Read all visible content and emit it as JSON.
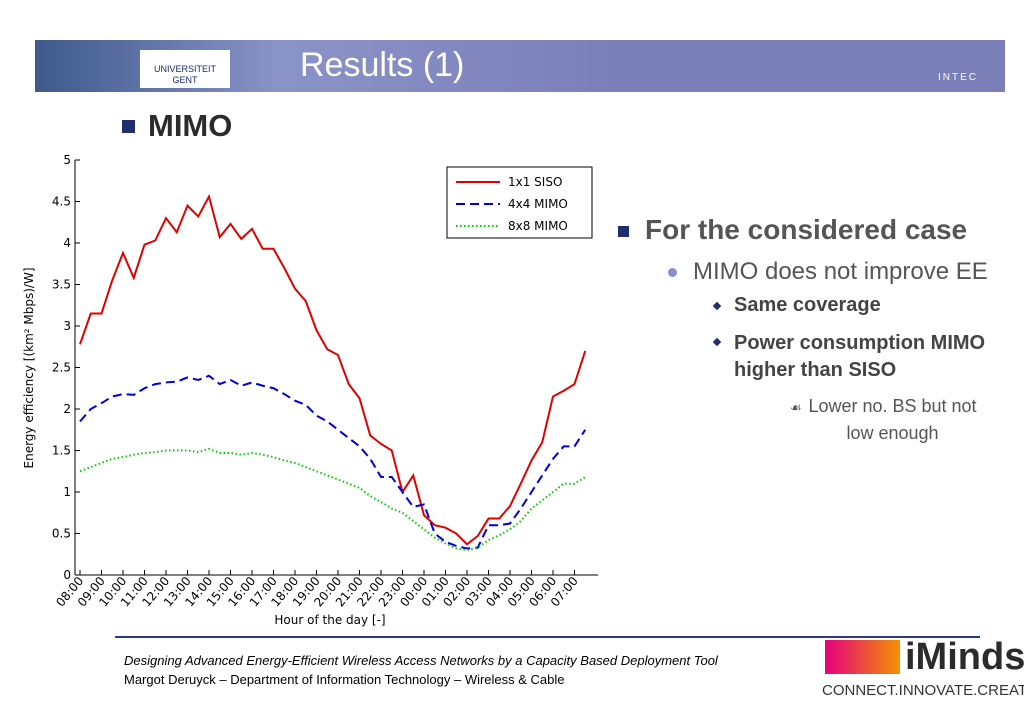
{
  "header": {
    "title": "Results (1)",
    "logo_left": [
      "UNIVERSITEIT",
      "GENT"
    ],
    "logo_right": "INTEC"
  },
  "section": "MIMO",
  "chart_data": {
    "type": "line",
    "x_label": "Hour of the day [-]",
    "y_label": "Energy efficiency [(km² Mbps)/W]",
    "categories": [
      "08:00",
      null,
      "09:00",
      null,
      "10:00",
      null,
      "11:00",
      null,
      "12:00",
      null,
      "13:00",
      null,
      "14:00",
      null,
      "15:00",
      null,
      "16:00",
      null,
      "17:00",
      null,
      "18:00",
      null,
      "19:00",
      null,
      "20:00",
      null,
      "21:00",
      null,
      "22:00",
      null,
      "23:00",
      null,
      "00:00",
      null,
      "01:00",
      null,
      "02:00",
      null,
      "03:00",
      null,
      "04:00",
      null,
      "05:00",
      null,
      "06:00",
      null,
      "07:00",
      null
    ],
    "ylim": [
      0,
      5
    ],
    "yticks": [
      0,
      0.5,
      1,
      1.5,
      2,
      2.5,
      3,
      3.5,
      4,
      4.5,
      5
    ],
    "legend": "upper right",
    "series": [
      {
        "name": "1x1 SISO",
        "color": "#e00000",
        "style": "solid",
        "values": [
          2.78,
          3.15,
          3.15,
          3.55,
          3.88,
          3.58,
          3.98,
          4.03,
          4.3,
          4.13,
          4.45,
          4.32,
          4.56,
          4.07,
          4.23,
          4.05,
          4.17,
          3.93,
          3.93,
          3.7,
          3.45,
          3.3,
          2.95,
          2.72,
          2.65,
          2.3,
          2.13,
          1.68,
          1.58,
          1.5,
          1.0,
          1.2,
          0.72,
          0.6,
          0.57,
          0.5,
          0.37,
          0.47,
          0.68,
          0.68,
          0.83,
          1.1,
          1.38,
          1.6,
          2.15,
          2.22,
          2.3,
          2.7
        ]
      },
      {
        "name": "4x4 MIMO",
        "color": "#0000dd",
        "style": "dashed",
        "values": [
          1.85,
          2.0,
          2.07,
          2.15,
          2.18,
          2.17,
          2.25,
          2.3,
          2.32,
          2.33,
          2.38,
          2.35,
          2.4,
          2.3,
          2.35,
          2.28,
          2.32,
          2.28,
          2.25,
          2.18,
          2.1,
          2.05,
          1.92,
          1.85,
          1.75,
          1.65,
          1.55,
          1.4,
          1.18,
          1.18,
          1.0,
          0.82,
          0.85,
          0.5,
          0.4,
          0.35,
          0.32,
          0.33,
          0.6,
          0.6,
          0.62,
          0.8,
          1.0,
          1.2,
          1.4,
          1.55,
          1.55,
          1.75
        ]
      },
      {
        "name": "8x8 MIMO",
        "color": "#00cc00",
        "style": "dotted",
        "values": [
          1.25,
          1.3,
          1.35,
          1.4,
          1.42,
          1.45,
          1.47,
          1.48,
          1.5,
          1.5,
          1.5,
          1.48,
          1.52,
          1.47,
          1.47,
          1.45,
          1.47,
          1.45,
          1.42,
          1.38,
          1.35,
          1.3,
          1.25,
          1.2,
          1.15,
          1.1,
          1.05,
          0.95,
          0.88,
          0.8,
          0.75,
          0.65,
          0.55,
          0.45,
          0.38,
          0.32,
          0.3,
          0.33,
          0.42,
          0.48,
          0.55,
          0.65,
          0.8,
          0.9,
          1.0,
          1.1,
          1.1,
          1.18
        ]
      }
    ]
  },
  "bullets": {
    "level1": "For the considered case",
    "level2": "MIMO does not improve EE",
    "level3": [
      "Same coverage",
      "Power consumption MIMO higher than SISO"
    ],
    "level4": "Lower no. BS but not low enough"
  },
  "footer": {
    "line1": "Designing Advanced Energy-Efficient Wireless Access Networks by a Capacity Based Deployment Tool",
    "line2": "Margot Deruyck – Department of Information Technology – Wireless & Cable",
    "brand": "iMinds",
    "tagline": "CONNECT.INNOVATE.CREATE"
  }
}
